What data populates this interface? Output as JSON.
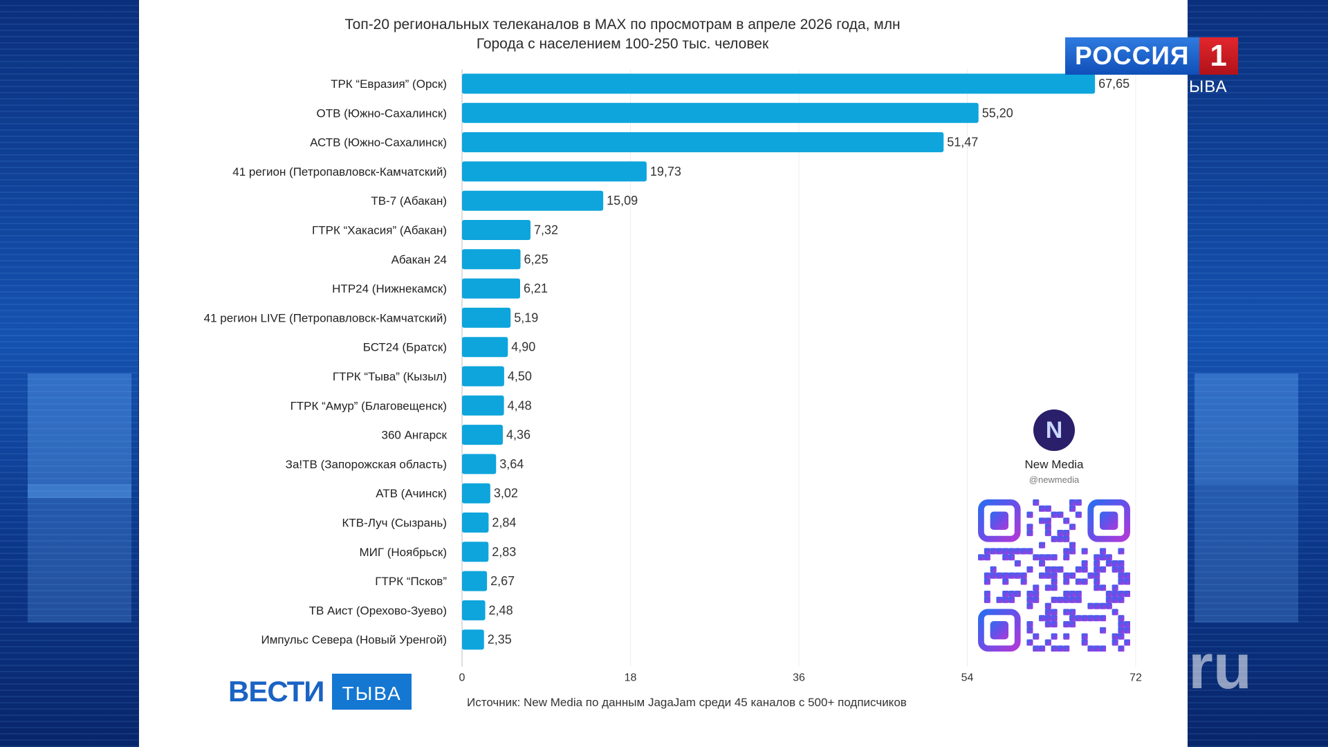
{
  "broadcast": {
    "channel_logo": "РОССИЯ",
    "channel_number": "1",
    "region_label": "ЫВА",
    "program_logo_main": "ВЕСТИ",
    "program_logo_region": "ТЫВА",
    "watermark": "ru"
  },
  "chart_data": {
    "type": "bar",
    "orientation": "horizontal",
    "title": "Топ-20 региональных телеканалов в MAX по просмотрам в апреле 2026 года, млн",
    "subtitle": "Города с населением 100-250 тыс. человек",
    "categories": [
      "ТРК “Евразия” (Орск)",
      "ОТВ (Южно-Сахалинск)",
      "АСТВ (Южно-Сахалинск)",
      "41 регион (Петропавловск-Камчатский)",
      "ТВ-7 (Абакан)",
      "ГТРК “Хакасия” (Абакан)",
      "Абакан 24",
      "НТР24 (Нижнекамск)",
      "41 регион LIVE (Петропавловск-Камчатский)",
      "БСТ24 (Братск)",
      "ГТРК “Тыва” (Кызыл)",
      "ГТРК “Амур” (Благовещенск)",
      "360 Ангарск",
      "За!ТВ (Запорожская область)",
      "АТВ (Ачинск)",
      "КТВ-Луч (Сызрань)",
      "МИГ (Ноябрьск)",
      "ГТРК “Псков”",
      "ТВ Аист (Орехово-Зуево)",
      "Импульс Севера (Новый Уренгой)"
    ],
    "values": [
      67.65,
      55.2,
      51.47,
      19.73,
      15.09,
      7.32,
      6.25,
      6.21,
      5.19,
      4.9,
      4.5,
      4.48,
      4.36,
      3.64,
      3.02,
      2.84,
      2.83,
      2.67,
      2.48,
      2.35
    ],
    "value_labels": [
      "67,65",
      "55,20",
      "51,47",
      "19,73",
      "15,09",
      "7,32",
      "6,25",
      "6,21",
      "5,19",
      "4,90",
      "4,50",
      "4,48",
      "4,36",
      "3,64",
      "3,02",
      "2,84",
      "2,83",
      "2,67",
      "2,48",
      "2,35"
    ],
    "xlim": [
      0,
      72
    ],
    "xticks": [
      0,
      18,
      36,
      54,
      72
    ],
    "grid": true,
    "bar_color": "#0ea5dc",
    "source": "Источник: New Media по данным JagaJam среди 45 каналов с 500+ подписчиков"
  },
  "promo": {
    "name": "New Media",
    "handle": "@newmedia",
    "avatar_letter": "N",
    "qr_icon": "qr-code-icon"
  }
}
